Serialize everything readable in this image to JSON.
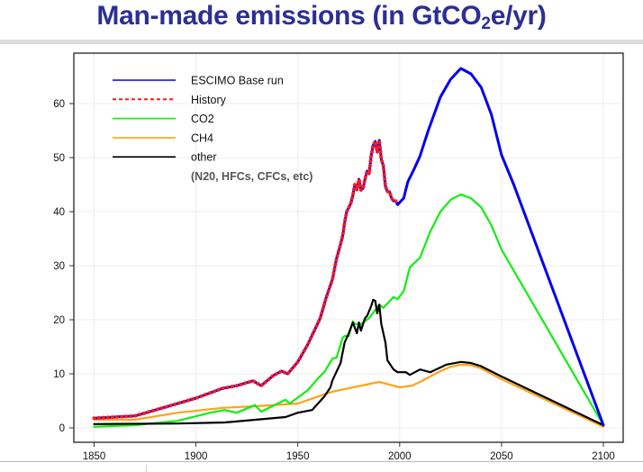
{
  "title": {
    "main": "Man-made emissions (in GtCO",
    "subscript": "2",
    "suffix": "e/yr)"
  },
  "chart_data": {
    "type": "line",
    "title": "Man-made emissions (in GtCO2e/yr)",
    "xlabel": "",
    "ylabel": "",
    "xlim": [
      1840,
      2110
    ],
    "ylim": [
      -1.5,
      69
    ],
    "xticks": [
      1850,
      1900,
      1950,
      2000,
      2050,
      2100
    ],
    "yticks": [
      0,
      10,
      20,
      30,
      40,
      50,
      60
    ],
    "grid": true,
    "legend_position": "top-left",
    "legend_note": "(N20, HFCs, CFCs, etc)",
    "series": [
      {
        "name": "ESCIMO Base run",
        "color": "#0000ee",
        "style": "solid",
        "x": [
          1850,
          1870,
          1891,
          1900,
          1913,
          1920,
          1928,
          1932,
          1938,
          1942,
          1945,
          1950,
          1955,
          1961,
          1964,
          1967,
          1969,
          1971,
          1972,
          1973,
          1974,
          1976,
          1977,
          1978,
          1979,
          1980,
          1981,
          1982,
          1983,
          1984,
          1985,
          1986,
          1987,
          1988,
          1989,
          1990,
          1991,
          1992,
          1993,
          1994,
          1995,
          1996,
          1997,
          1998,
          1999,
          2002,
          2004,
          2007,
          2010,
          2014,
          2020,
          2025,
          2030,
          2035,
          2040,
          2045,
          2050,
          2056,
          2100
        ],
        "y": [
          1.8,
          2.2,
          4.5,
          5.5,
          7.3,
          7.8,
          8.7,
          7.8,
          9.7,
          10.5,
          10,
          12.2,
          15.5,
          20.3,
          24.2,
          27.5,
          31.3,
          34,
          35.5,
          38,
          40,
          41.5,
          43,
          45,
          44,
          46,
          44,
          44.3,
          46,
          47.5,
          47,
          50.3,
          52.3,
          53,
          51,
          53.2,
          49.7,
          48.5,
          44.7,
          43.7,
          43.7,
          42.5,
          42,
          42,
          41.3,
          42.5,
          45.5,
          47.8,
          50.3,
          55,
          61.2,
          64.5,
          66.5,
          65.5,
          63,
          58,
          50.5,
          45,
          0.5
        ]
      },
      {
        "name": "History",
        "color": "#ff1a1a",
        "style": "dotted",
        "x": [
          1850,
          1870,
          1891,
          1900,
          1913,
          1920,
          1928,
          1932,
          1938,
          1942,
          1945,
          1950,
          1955,
          1961,
          1964,
          1967,
          1969,
          1971,
          1972,
          1973,
          1974,
          1976,
          1977,
          1978,
          1979,
          1980,
          1981,
          1982,
          1983,
          1984,
          1985,
          1986,
          1987,
          1988,
          1989,
          1990,
          1991,
          1992,
          1993,
          1994,
          1995,
          1996,
          1997,
          1998,
          1999
        ],
        "y": [
          1.8,
          2.2,
          4.5,
          5.5,
          7.3,
          7.8,
          8.7,
          7.8,
          9.7,
          10.5,
          10,
          12.2,
          15.5,
          20.3,
          24.2,
          27.5,
          31.3,
          34,
          35.5,
          38,
          40,
          41.5,
          43,
          45,
          44,
          46,
          44,
          44.3,
          46,
          47.5,
          47,
          50.3,
          52.3,
          53,
          51,
          53.2,
          49.7,
          48.5,
          44.7,
          43.7,
          43.7,
          42.5,
          42,
          42,
          41.3
        ]
      },
      {
        "name": "CO2",
        "color": "#11ee11",
        "style": "solid",
        "x": [
          1850,
          1870,
          1891,
          1907,
          1914,
          1920,
          1929,
          1932,
          1944,
          1946,
          1955,
          1960,
          1963,
          1967,
          1969,
          1972,
          1973,
          1975,
          1977,
          1978,
          1981,
          1985,
          1990,
          1992,
          1997,
          1999,
          2002,
          2005,
          2010,
          2015,
          2020,
          2025,
          2030,
          2035,
          2040,
          2045,
          2050,
          2100
        ],
        "y": [
          0.2,
          0.5,
          1.3,
          2.8,
          3.3,
          2.8,
          4.2,
          3,
          5.2,
          4.5,
          7,
          9.2,
          10.3,
          12.8,
          13,
          16.7,
          17,
          17,
          19.7,
          19.2,
          19.2,
          20.3,
          22.8,
          22.2,
          24.2,
          23.8,
          25.3,
          29.7,
          31.5,
          36.3,
          40,
          42.2,
          43.2,
          42.5,
          40.8,
          37.5,
          33,
          0.5
        ]
      },
      {
        "name": "CH4",
        "color": "#ffa319",
        "style": "solid",
        "x": [
          1850,
          1870,
          1891,
          1913,
          1929,
          1950,
          1963,
          1967,
          1990,
          2000,
          2006,
          2010,
          2020,
          2025,
          2030,
          2035,
          2040,
          2050,
          2100
        ],
        "y": [
          1.5,
          1.5,
          2.8,
          3.7,
          4,
          4.5,
          6.2,
          6.7,
          8.5,
          7.5,
          7.8,
          8.5,
          10.5,
          11.3,
          11.7,
          11.6,
          11,
          9,
          0.2
        ]
      },
      {
        "name": "other",
        "color": "#000000",
        "style": "solid",
        "x": [
          1850,
          1891,
          1914,
          1944,
          1950,
          1957,
          1963,
          1966,
          1967,
          1971,
          1973,
          1975,
          1977,
          1979,
          1980,
          1981,
          1983,
          1984,
          1986,
          1987,
          1988,
          1989,
          1990,
          1991,
          1993,
          1994,
          1997,
          1999,
          2003,
          2005,
          2010,
          2015,
          2023,
          2030,
          2035,
          2040,
          2050,
          2100
        ],
        "y": [
          0.7,
          0.8,
          1,
          2,
          2.8,
          3.3,
          5.8,
          7.5,
          8.8,
          12,
          15.8,
          17.5,
          19.5,
          17.5,
          19.5,
          18,
          20.3,
          20.7,
          22.5,
          23.7,
          23.5,
          21.2,
          22.8,
          19.2,
          15.8,
          12.5,
          10.8,
          10.3,
          10.3,
          9.8,
          10.8,
          10.3,
          11.7,
          12.2,
          12,
          11.4,
          9.5,
          0.5
        ]
      }
    ]
  }
}
